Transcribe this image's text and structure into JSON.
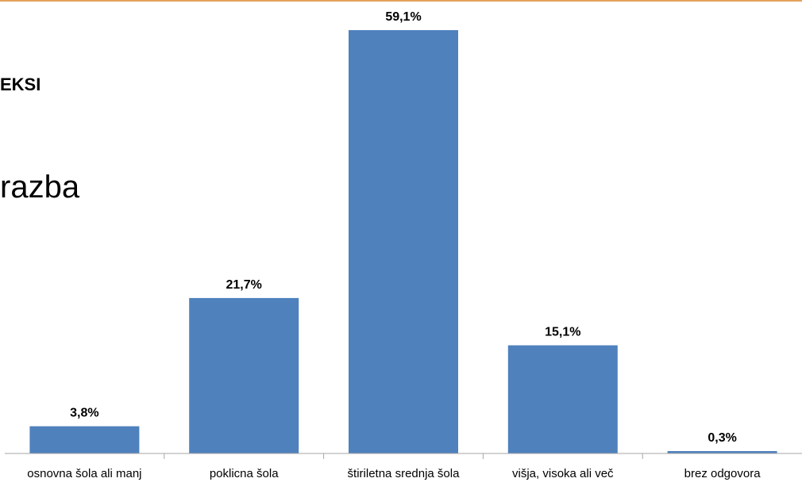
{
  "slide": {
    "title_fragment": "EKSI",
    "subtitle_fragment": "razba",
    "accent_color": "#E3A25C"
  },
  "chart_data": {
    "type": "bar",
    "categories": [
      "osnovna šola ali manj",
      "poklicna šola",
      "štiriletna srednja šola",
      "višja, visoka ali več",
      "brez odgovora"
    ],
    "values": [
      3.8,
      21.7,
      59.1,
      15.1,
      0.3
    ],
    "data_labels": [
      "3,8%",
      "21,7%",
      "59,1%",
      "15,1%",
      "0,3%"
    ],
    "ylim": [
      0,
      60
    ],
    "bar_color": "#4F81BD",
    "grid": false,
    "legend": "none"
  }
}
